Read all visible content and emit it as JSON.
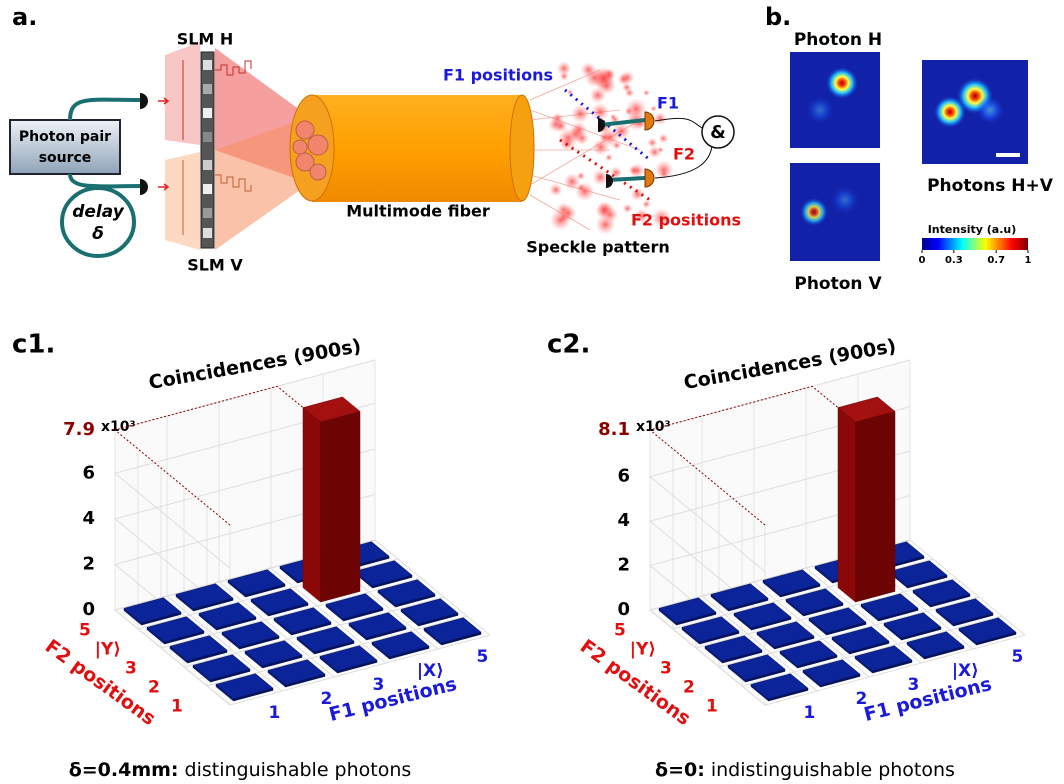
{
  "panel_a": {
    "label": "a.",
    "source": [
      "Photon pair",
      "source"
    ],
    "delay": "delay",
    "delta": "δ",
    "slm_h": "SLM H",
    "slm_v": "SLM V",
    "fiber": "Multimode fiber",
    "speckle": "Speckle pattern",
    "f1_positions": "F1 positions",
    "f2_positions": "F2 positions",
    "f1": "F1",
    "f2": "F2",
    "coincidence": "&"
  },
  "panel_b": {
    "label": "b.",
    "photon_h": "Photon H",
    "photon_v": "Photon V",
    "photons_hv": "Photons H+V",
    "colorbar_title": "Intensity (a.u)",
    "colorbar_ticks": [
      0,
      0.3,
      0.7,
      1
    ]
  },
  "charts": [
    {
      "type": "bar3d",
      "label": "c1.",
      "title": "Coincidences (900s)",
      "multiplier": "x10³",
      "zlim": [
        0,
        7.9
      ],
      "zticks": [
        0,
        2,
        4,
        6
      ],
      "x_axis_label": "F1 positions",
      "y_axis_label": "F2 positions",
      "x_categories": [
        "1",
        "2",
        "3",
        "|X⟩",
        "5"
      ],
      "y_categories": [
        "1",
        "2",
        "3",
        "|Y⟩",
        "5"
      ],
      "values": [
        [
          0.1,
          0.1,
          0.1,
          0.1,
          0.1
        ],
        [
          0.1,
          0.1,
          0.1,
          0.1,
          0.1
        ],
        [
          0.1,
          0.1,
          0.1,
          0.1,
          0.1
        ],
        [
          0.1,
          0.1,
          0.1,
          7.9,
          0.1
        ],
        [
          0.1,
          0.1,
          0.1,
          0.1,
          0.1
        ]
      ],
      "caption_bold": "δ=0.4mm:",
      "caption": "distinguishable photons"
    },
    {
      "type": "bar3d",
      "label": "c2.",
      "title": "Coincidences (900s)",
      "multiplier": "x10³",
      "zlim": [
        0,
        8.1
      ],
      "zticks": [
        0,
        2,
        4,
        6
      ],
      "x_axis_label": "F1 positions",
      "y_axis_label": "F2 positions",
      "x_categories": [
        "1",
        "2",
        "3",
        "|X⟩",
        "5"
      ],
      "y_categories": [
        "1",
        "2",
        "3",
        "|Y⟩",
        "5"
      ],
      "values": [
        [
          0.1,
          0.1,
          0.1,
          0.1,
          0.1
        ],
        [
          0.1,
          0.1,
          0.1,
          0.1,
          0.1
        ],
        [
          0.1,
          0.1,
          0.1,
          0.1,
          0.1
        ],
        [
          0.1,
          0.1,
          0.1,
          8.1,
          0.1
        ],
        [
          0.1,
          0.1,
          0.1,
          0.1,
          0.1
        ]
      ],
      "caption_bold": "δ=0:",
      "caption": "indistinguishable photons"
    }
  ]
}
